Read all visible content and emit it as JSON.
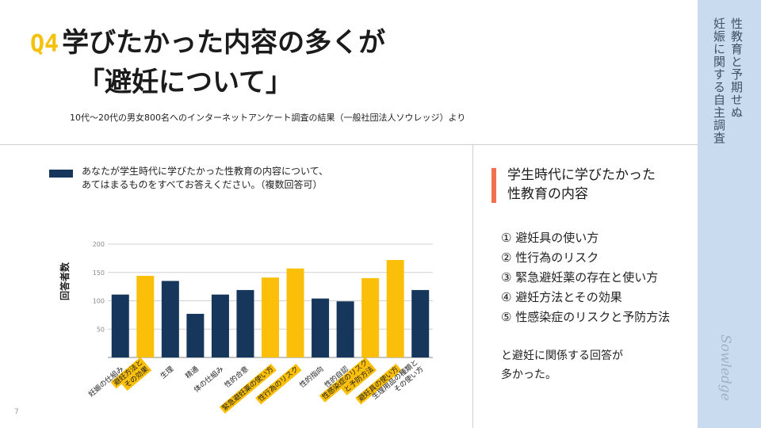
{
  "sidebar": {
    "line1": "性教育と予期せぬ",
    "line2": "妊娠に関する自主調査",
    "logo": "Sowledge"
  },
  "title": {
    "q": "Q4",
    "line1": "学びたかった内容の多くが",
    "line2": "「避妊について」"
  },
  "source": "10代〜20代の男女800名へのインターネットアンケート調査の結果（一般社団法人ソウレッジ）より",
  "legend": {
    "line1": "あなたが学生時代に学びたかった性教育の内容について、",
    "line2": "あてはまるものをすべてお答えください。（複数回答可）"
  },
  "page_number": "7",
  "right": {
    "title_line1": "学生時代に学びたかった",
    "title_line2": "性教育の内容",
    "items": [
      "① 避妊具の使い方",
      "② 性行為のリスク",
      "③ 緊急避妊薬の存在と使い方",
      "④ 避妊方法とその効果",
      "⑤ 性感染症のリスクと予防方法"
    ],
    "conclusion_line1": "と避妊に関係する回答が",
    "conclusion_line2": "多かった。"
  },
  "colors": {
    "navy": "#16365c",
    "yellow": "#fbbf09",
    "accent": "#f07050",
    "sideband": "#c9dcef"
  },
  "chart_data": {
    "type": "bar",
    "ylabel": "回答者数",
    "ylim": [
      0,
      200
    ],
    "yticks": [
      50,
      100,
      150,
      200
    ],
    "grid": true,
    "categories": [
      "妊娠の仕組み",
      "避妊方法と\nその効果",
      "生理",
      "精通",
      "体の仕組み",
      "性的合意",
      "緊急避妊薬の使い方",
      "性行為のリスク",
      "性的指向",
      "性的自認",
      "性感染症のリスク\nと予防方法",
      "避妊具の使い方",
      "生理用品の種類と\nその使い方"
    ],
    "values": [
      111,
      144,
      135,
      77,
      111,
      119,
      141,
      157,
      104,
      99,
      140,
      172,
      119
    ],
    "highlight": [
      false,
      true,
      false,
      false,
      false,
      false,
      true,
      true,
      false,
      false,
      true,
      true,
      false
    ]
  }
}
